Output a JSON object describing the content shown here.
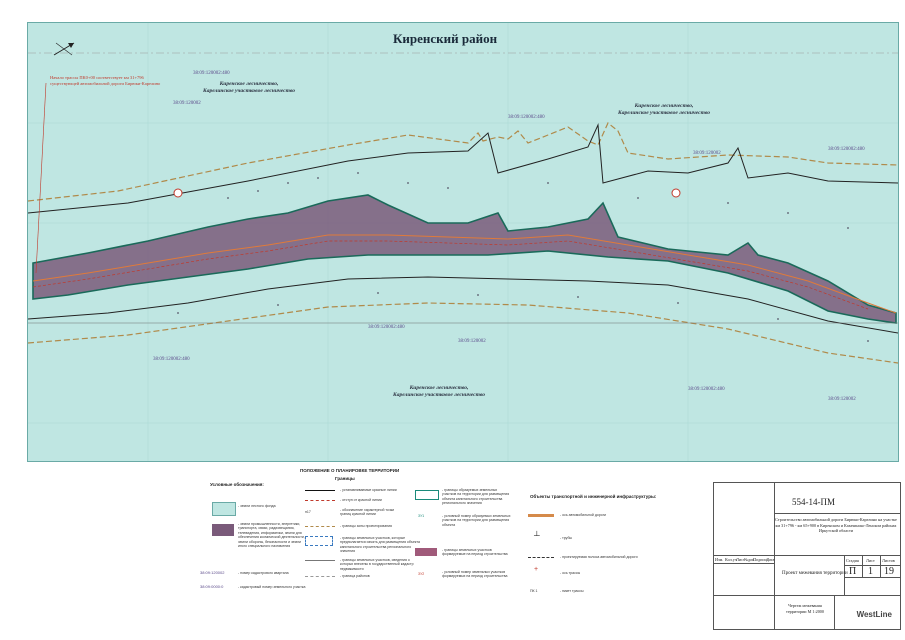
{
  "map": {
    "district_title": "Киренский район",
    "forest_labels": [
      {
        "line1": "Киренское лесничество,",
        "line2": "Карелинское участковое лесничество"
      },
      {
        "line1": "Киренское лесничество,",
        "line2": "Карелинское участковое лесничество"
      },
      {
        "line1": "Киренское лесничество,",
        "line2": "Карелинское участковое лесничество"
      }
    ],
    "cadastral_labels": [
      "38:09:120002:480",
      "38:09:120002",
      "38:09:120002:480",
      "38:09:120002",
      "38:09:120002:480",
      "38:09:120002:480",
      "38:09:120002",
      "38:09:120002:480",
      "38:09:120002:480",
      "38:09:120002"
    ],
    "start_note": "Начало трассы ПК0+00 соответствует км 31+796 существующей автомобильной дороги Бирюки-Карелино",
    "colors": {
      "water": "#bfe6e2",
      "road_fill": "#7a5a7a",
      "boundary_brown": "#b08a4a",
      "centerline": "#c0392b"
    }
  },
  "legend": {
    "title": "Условные обозначения:",
    "forest_fund": "- земли лесного фонда",
    "fill_area": "- земли промышленности, энергетики, транспорта, связи, радиовещания, телевидения, информатики, земли для обеспечения космической деятельности, земли обороны, безопасности и земли иного специального назначения",
    "cad_quarter_code": "38:09:120002",
    "cad_quarter_text": "- номер кадастрового квартала",
    "cad_parcel_code": "38:09:0000:0",
    "cad_parcel_text": "- кадастровый номер земельного участка",
    "section_title": "ПОЛОЖЕНИЕ О ПЛАНИРОВКЕ ТЕРРИТОРИИ",
    "boundaries_title": "Границы",
    "items_mid": [
      "- устанавливаемые красные линии",
      "- отступ от красной линии",
      "- обозначение характерной точки границ красной линии",
      "- границы зоны проектирования",
      "- границы земельных участков, которые предполагается изъять для размещения объекта капитального строительства регионального значения",
      "- границы земельных участков, сведения о которых внесены в государственный кадастр недвижимости",
      "- граница районов"
    ],
    "mid_marker": "п17",
    "items_right": [
      "- границы образуемых земельных участков на территории для размещения объекта капитального строительства регионального значения",
      "- условный номер образуемых земельных участков на территории для размещения объекта",
      "- границы земельных участков формируемые на период строительства",
      "- условный номер земельных участков формируемых на период строительства"
    ],
    "right_markers": [
      "ЗУ1",
      "ЗУ2"
    ],
    "infra_title": "Объекты транспортной и инженерной инфраструктуры:",
    "infra_items": [
      "- ось автомобильной дороги",
      "- трубы",
      "- проектируемая полоса автомобильной дороги",
      "- ось трассы",
      "- пикет трассы"
    ],
    "picket_label": "ПК 1"
  },
  "title_block": {
    "code": "554-14-ПМ",
    "description": "Строительство автомобильной дороги Бирюки-Карелино на участке км 31+796 - км 65+900 в Киренском и Казачинско-Ленском районах Иркутской области",
    "columns": [
      "Изм.",
      "Кол.уч",
      "Лист",
      "№док.",
      "Подпись",
      "Дата"
    ],
    "stage_label": "Стадия",
    "sheet_label": "Лист",
    "sheets_label": "Листов",
    "stage": "П",
    "sheet": "1",
    "sheets": "19",
    "drawing_name": "Проект межевания территории",
    "drawing_sub": "Чертеж межевания территории М 1:2000",
    "logo": "WestLine"
  }
}
